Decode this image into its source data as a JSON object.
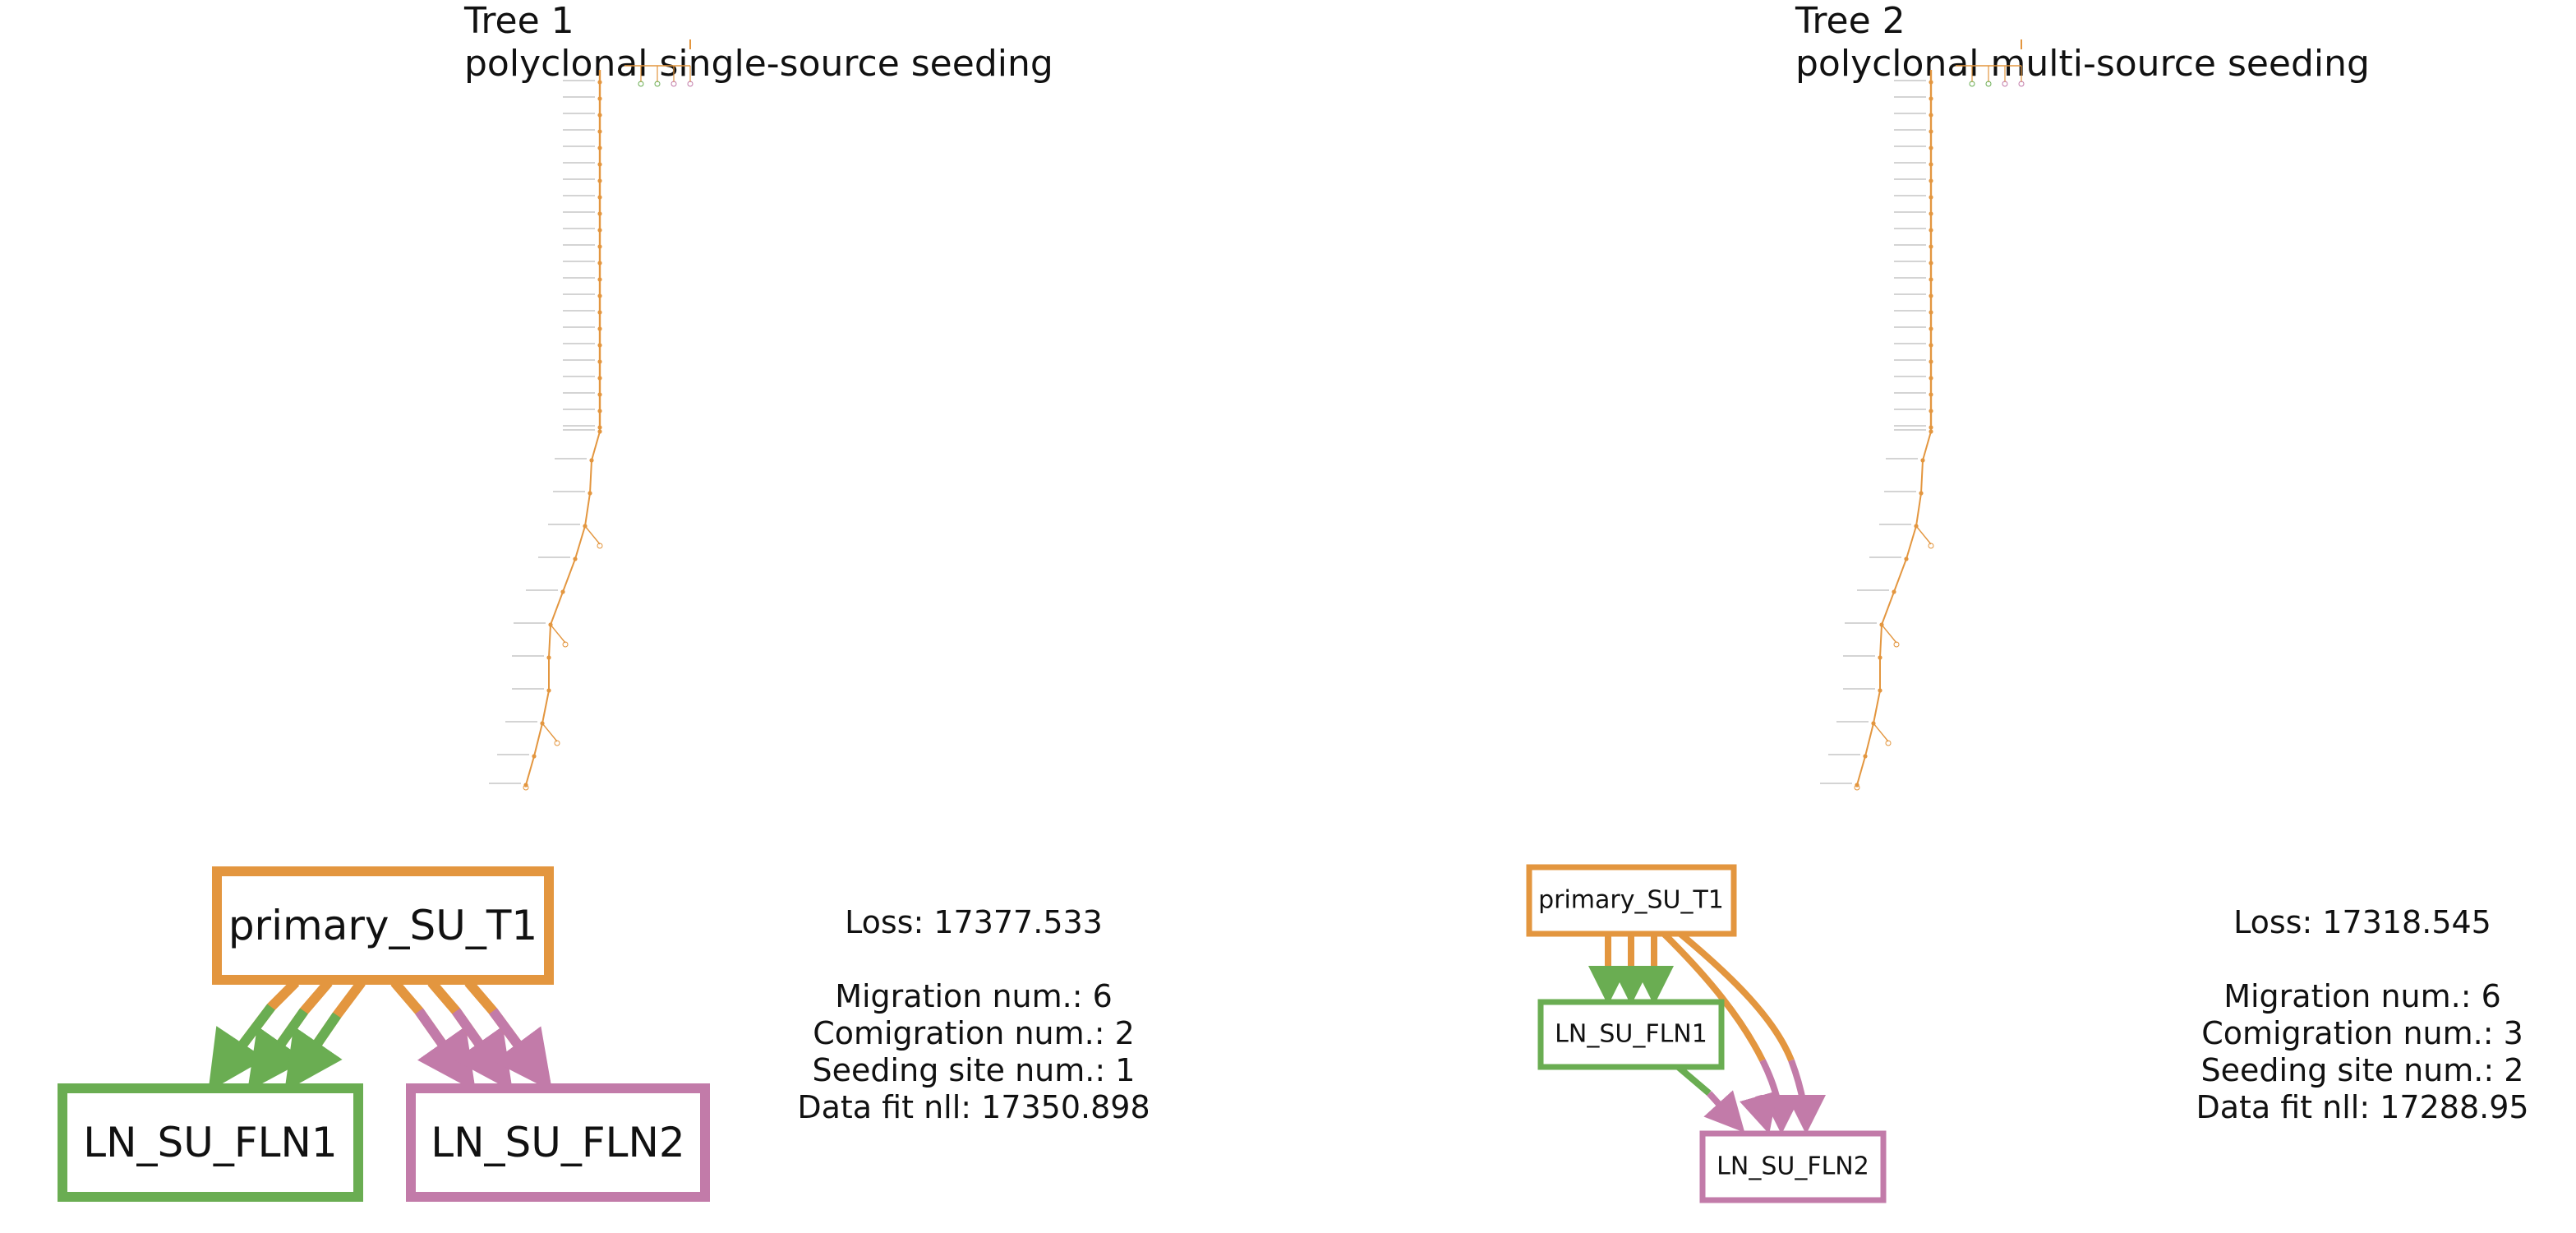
{
  "colors": {
    "primary": "#e3963f",
    "ln1": "#6aad52",
    "ln2": "#c27ba9",
    "text": "#111111"
  },
  "trees": [
    {
      "title_line1": "Tree 1",
      "title_line2": "polyclonal single-source seeding",
      "sites": {
        "primary": "primary_SU_T1",
        "ln1": "LN_SU_FLN1",
        "ln2": "LN_SU_FLN2"
      },
      "stats": {
        "loss": "Loss: 17377.533",
        "migration": "Migration num.: 6",
        "comigration": "Comigration num.: 2",
        "seeding": "Seeding site num.: 1",
        "datafit": "Data fit nll: 17350.898"
      }
    },
    {
      "title_line1": "Tree 2",
      "title_line2": "polyclonal multi-source seeding",
      "sites": {
        "primary": "primary_SU_T1",
        "ln1": "LN_SU_FLN1",
        "ln2": "LN_SU_FLN2"
      },
      "stats": {
        "loss": "Loss: 17318.545",
        "migration": "Migration num.: 6",
        "comigration": "Comigration num.: 3",
        "seeding": "Seeding site num.: 2",
        "datafit": "Data fit nll: 17288.95"
      }
    }
  ]
}
